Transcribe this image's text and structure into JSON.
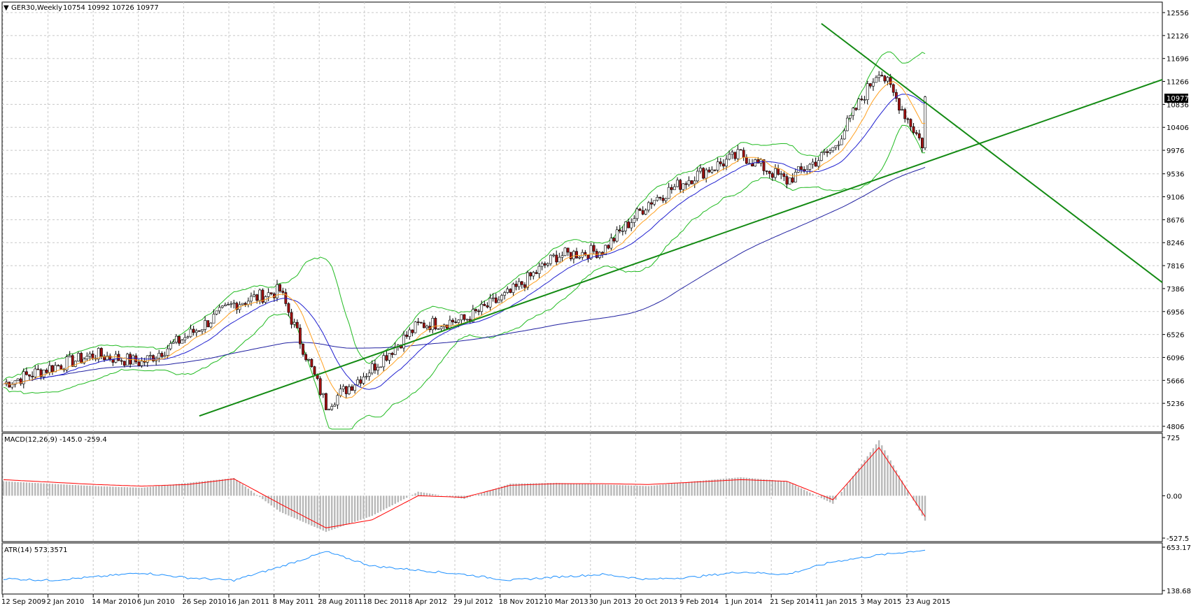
{
  "header": {
    "symbol_label": "GER30,Weekly",
    "ohlc_label": "10754 10992 10726 10977",
    "dropdown_glyph": "▼"
  },
  "price_axis": {
    "ticks": [
      "12556",
      "12126",
      "11696",
      "11266",
      "10836",
      "10406",
      "9976",
      "9536",
      "9106",
      "8676",
      "8246",
      "7816",
      "7386",
      "6956",
      "6526",
      "6096",
      "5666",
      "5236",
      "4806"
    ],
    "tick_values": [
      12556,
      12126,
      11696,
      11266,
      10836,
      10406,
      9976,
      9536,
      9106,
      8676,
      8246,
      7816,
      7386,
      6956,
      6526,
      6096,
      5666,
      5236,
      4806
    ],
    "current_price_label": "10977",
    "current_price": 10977
  },
  "macd": {
    "title": "MACD(12,26,9) -145.0 -259.4",
    "ticks": [
      "725",
      "0.00",
      "-527.5"
    ],
    "tick_values": [
      725,
      0,
      -527.5
    ]
  },
  "atr": {
    "title": "ATR(14) 573.3571",
    "ticks": [
      "653.1714",
      "138.6857"
    ],
    "tick_values": [
      653.1714,
      138.6857
    ]
  },
  "time_axis": {
    "labels": [
      "12 Sep 2009",
      "2 Jan 2010",
      "14 Mar 2010",
      "6 Jun 2010",
      "26 Sep 2010",
      "16 Jan 2011",
      "8 May 2011",
      "28 Aug 2011",
      "18 Dec 2011",
      "8 Apr 2012",
      "29 Jul 2012",
      "18 Nov 2012",
      "10 Mar 2013",
      "30 Jun 2013",
      "20 Oct 2013",
      "9 Feb 2014",
      "1 Jun 2014",
      "21 Sep 2014",
      "11 Jan 2015",
      "3 May 2015",
      "23 Aug 2015"
    ]
  },
  "colors": {
    "bull_candle": "#ffffff",
    "bear_candle": "#a01010",
    "candle_outline": "#000000",
    "bollinger": "#22bb22",
    "ma_fast": "#ffa020",
    "ma_mid": "#2020d0",
    "ma_slow": "#2020a0",
    "trendline": "#138a13",
    "macd_hist": "#b8b8b8",
    "macd_signal": "#ff0000",
    "atr_line": "#1e90ff",
    "grid": "#c8c8c8"
  },
  "chart_data": [
    {
      "type": "candlestick",
      "title": "GER30,Weekly",
      "ylim": [
        4806,
        12700
      ],
      "key_closes": [
        {
          "x": "12 Sep 2009",
          "close": 5600
        },
        {
          "x": "2 Jan 2010",
          "close": 5900
        },
        {
          "x": "14 Mar 2010",
          "close": 6150
        },
        {
          "x": "6 Jun 2010",
          "close": 6000
        },
        {
          "x": "26 Sep 2010",
          "close": 6500
        },
        {
          "x": "16 Jan 2011",
          "close": 7100
        },
        {
          "x": "8 May 2011",
          "close": 7350
        },
        {
          "x": "28 Aug 2011",
          "close": 5200
        },
        {
          "x": "18 Dec 2011",
          "close": 5900
        },
        {
          "x": "8 Apr 2012",
          "close": 6700
        },
        {
          "x": "29 Jul 2012",
          "close": 6800
        },
        {
          "x": "18 Nov 2012",
          "close": 7300
        },
        {
          "x": "10 Mar 2013",
          "close": 8000
        },
        {
          "x": "30 Jun 2013",
          "close": 8100
        },
        {
          "x": "20 Oct 2013",
          "close": 9000
        },
        {
          "x": "9 Feb 2014",
          "close": 9500
        },
        {
          "x": "1 Jun 2014",
          "close": 9900
        },
        {
          "x": "21 Sep 2014",
          "close": 9400
        },
        {
          "x": "11 Jan 2015",
          "close": 10000
        },
        {
          "x": "3 May 2015",
          "close": 11500
        },
        {
          "x": "23 Aug 2015",
          "close": 10000
        }
      ],
      "last_close": 10977
    },
    {
      "type": "bar",
      "title": "MACD(12,26,9) -145.0 -259.4",
      "ylim": [
        -527.5,
        725
      ],
      "series": [
        {
          "name": "MACD",
          "values": [
            180,
            150,
            120,
            100,
            160,
            220,
            -200,
            -450,
            -250,
            50,
            -40,
            150,
            160,
            140,
            120,
            180,
            230,
            180,
            -100,
            690,
            -310
          ]
        },
        {
          "name": "Signal",
          "values": [
            200,
            170,
            140,
            120,
            140,
            210,
            -100,
            -400,
            -300,
            0,
            -20,
            130,
            150,
            150,
            140,
            170,
            200,
            180,
            -50,
            600,
            -260
          ]
        }
      ]
    },
    {
      "type": "line",
      "title": "ATR(14) 573.3571",
      "ylim": [
        138.6857,
        653.1714
      ],
      "series": [
        {
          "name": "ATR(14)",
          "values": [
            280,
            260,
            300,
            350,
            290,
            260,
            420,
            600,
            430,
            380,
            330,
            260,
            300,
            330,
            270,
            300,
            360,
            330,
            480,
            560,
            620
          ]
        }
      ]
    }
  ]
}
